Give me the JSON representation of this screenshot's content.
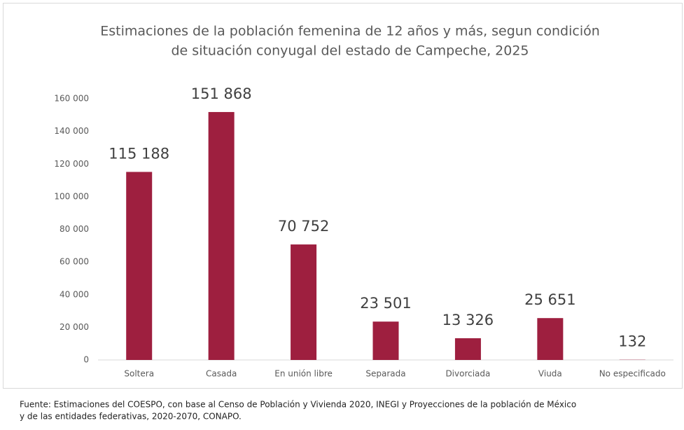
{
  "chart_data": {
    "type": "bar",
    "title": [
      "Estimaciones de la población femenina de 12 años y más, segun condición",
      "de situación conyugal del estado de Campeche, 2025"
    ],
    "categories": [
      "Soltera",
      "Casada",
      "En unión libre",
      "Separada",
      "Divorciada",
      "Viuda",
      "No especificado"
    ],
    "values": [
      115188,
      151868,
      70752,
      23501,
      13326,
      25651,
      132
    ],
    "value_labels": [
      "115 188",
      "151 868",
      "70 752",
      "23 501",
      "13 326",
      "25 651",
      "132"
    ],
    "color": "#9e1f3f",
    "ylim": [
      0,
      160000
    ],
    "yticks": [
      0,
      {
        "value": 20000,
        "label": "20 000"
      },
      {
        "value": 40000,
        "label": "40 000"
      },
      {
        "value": 60000,
        "label": "60 000"
      },
      {
        "value": 80000,
        "label": "80 000"
      },
      {
        "value": 100000,
        "label": "100 000"
      },
      {
        "value": 120000,
        "label": "120 000"
      },
      {
        "value": 140000,
        "label": "140 000"
      },
      {
        "value": 160000,
        "label": "160 000"
      }
    ],
    "grid": false,
    "source": [
      "Fuente: Estimaciones del COESPO, con base al Censo de Población y Vivienda 2020, INEGI y Proyecciones de la población de México",
      "y de las entidades federativas, 2020-2070, CONAPO."
    ]
  }
}
